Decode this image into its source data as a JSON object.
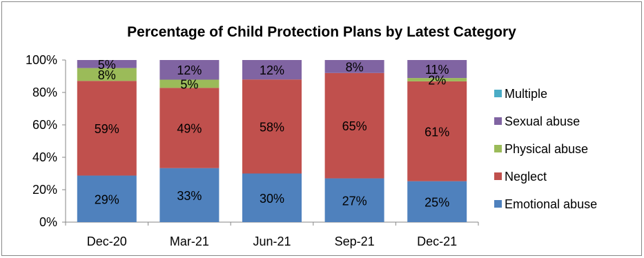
{
  "chart_data": {
    "type": "bar",
    "stacked": "percent",
    "title": "Percentage of Child Protection Plans by Latest Category",
    "categories": [
      "Dec-20",
      "Mar-21",
      "Jun-21",
      "Sep-21",
      "Dec-21"
    ],
    "ylim": [
      0,
      100
    ],
    "y_ticks": [
      "0%",
      "20%",
      "40%",
      "60%",
      "80%",
      "100%"
    ],
    "grid": false,
    "legend_position": "right",
    "series": [
      {
        "name": "Emotional abuse",
        "color": "#4F81BD",
        "values": [
          29,
          33,
          30,
          27,
          25
        ],
        "labels": [
          "29%",
          "33%",
          "30%",
          "27%",
          "25%"
        ]
      },
      {
        "name": "Neglect",
        "color": "#C0504D",
        "values": [
          59,
          49,
          58,
          65,
          61
        ],
        "labels": [
          "59%",
          "49%",
          "58%",
          "65%",
          "61%"
        ]
      },
      {
        "name": "Physical abuse",
        "color": "#9BBB59",
        "values": [
          8,
          5,
          0,
          0,
          2
        ],
        "labels": [
          "8%",
          "5%",
          "",
          "",
          "2%"
        ]
      },
      {
        "name": "Sexual abuse",
        "color": "#8064A2",
        "values": [
          5,
          12,
          12,
          8,
          11
        ],
        "labels": [
          "5%",
          "12%",
          "12%",
          "8%",
          "11%"
        ]
      },
      {
        "name": "Multiple",
        "color": "#4BACC6",
        "values": [
          0,
          0,
          0,
          0,
          0
        ],
        "labels": [
          "",
          "",
          "",
          "",
          ""
        ]
      }
    ]
  }
}
